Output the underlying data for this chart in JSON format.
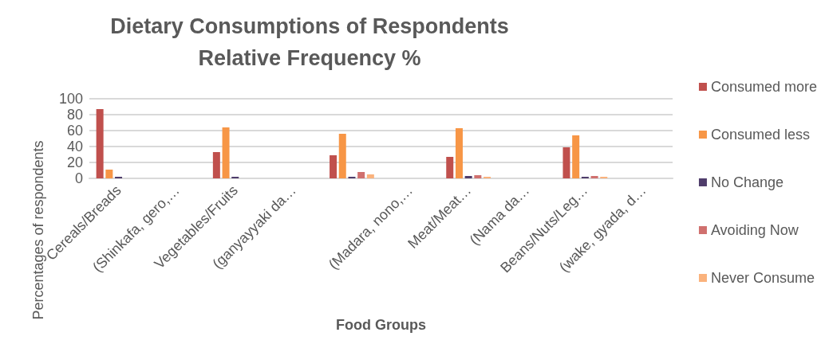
{
  "chart_data": {
    "type": "bar",
    "title": "Dietary Consumptions of Respondents\nRelative Frequency %",
    "xlabel": "Food Groups",
    "ylabel": "Percentages of respondents",
    "categories": [
      "Cereals/Breads",
      "(Shinkafa, gero,…",
      "Vegetables/Fruits",
      "(ganyayyaki da…",
      null,
      "(Madara, nono,…",
      "Meat/Meat…",
      "(Nama da…",
      "Beans/Nuts/Leg…",
      "(wake, gyada, d…"
    ],
    "series": [
      {
        "name": "Consumed more",
        "color": "#c0504d",
        "values": [
          87,
          null,
          33,
          null,
          29,
          null,
          27,
          null,
          39,
          null
        ]
      },
      {
        "name": "Consumed less",
        "color": "#f79646",
        "values": [
          11,
          null,
          64,
          null,
          56,
          null,
          63,
          null,
          54,
          null
        ]
      },
      {
        "name": "No Change",
        "color": "#4f3d6b",
        "values": [
          2,
          null,
          2,
          null,
          2,
          null,
          3,
          null,
          2,
          null
        ]
      },
      {
        "name": "Avoiding Now",
        "color": "#d0706e",
        "values": [
          0,
          null,
          0,
          null,
          8,
          null,
          4,
          null,
          3,
          null
        ]
      },
      {
        "name": "Never Consume",
        "color": "#fab27c",
        "values": [
          0,
          null,
          0,
          null,
          5,
          null,
          2,
          null,
          2,
          null
        ]
      }
    ],
    "ylim": [
      0,
      100
    ],
    "yticks": [
      0,
      20,
      40,
      60,
      80,
      100
    ],
    "grid": "y",
    "legend": "right"
  }
}
